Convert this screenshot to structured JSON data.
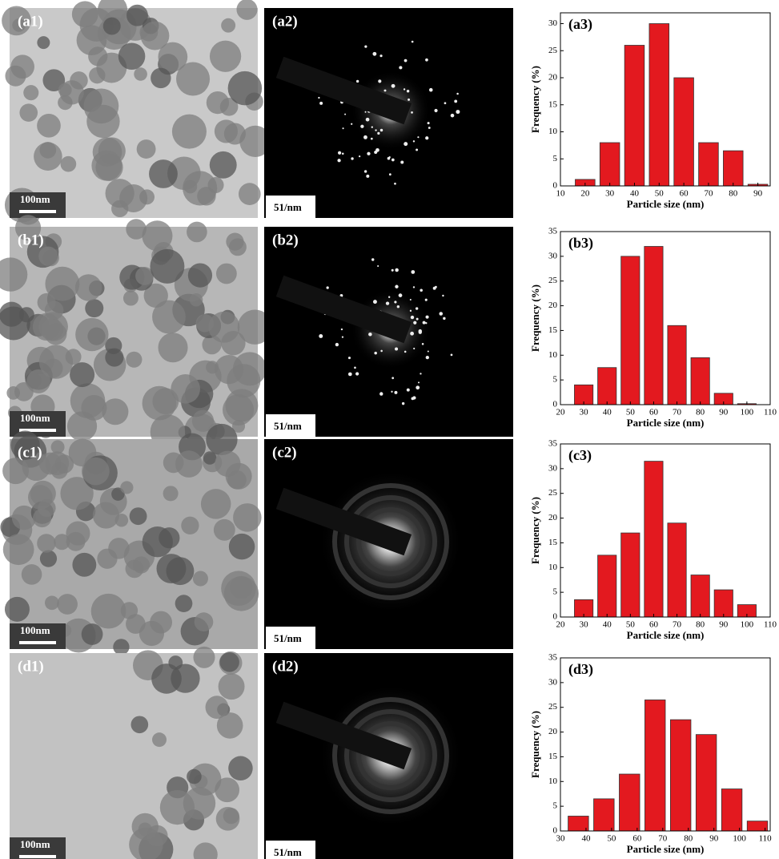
{
  "panels": [
    {
      "tem_label": "(a1)",
      "tem_scale": "100nm",
      "saed_label": "(a2)",
      "saed_scale": "51/nm"
    },
    {
      "tem_label": "(b1)",
      "tem_scale": "100nm",
      "saed_label": "(b2)",
      "saed_scale": "51/nm"
    },
    {
      "tem_label": "(c1)",
      "tem_scale": "100nm",
      "saed_label": "(c2)",
      "saed_scale": "51/nm"
    },
    {
      "tem_label": "(d1)",
      "tem_scale": "100nm",
      "saed_label": "(d2)",
      "saed_scale": "51/nm"
    }
  ],
  "chart_data": [
    {
      "type": "bar",
      "title": "(a3)",
      "x_label": "Particle size (nm)",
      "y_label": "Frequency (%)",
      "color": "#e3191f",
      "x": [
        20,
        30,
        40,
        50,
        60,
        70,
        80,
        90
      ],
      "values": [
        1.2,
        8,
        26,
        30,
        20,
        8,
        6.5,
        0.3
      ],
      "xlim": [
        10,
        95
      ],
      "xticks": [
        10,
        20,
        30,
        40,
        50,
        60,
        70,
        80,
        90
      ],
      "ylim": [
        0,
        32
      ],
      "yticks": [
        0,
        5,
        10,
        15,
        20,
        25,
        30
      ]
    },
    {
      "type": "bar",
      "title": "(b3)",
      "x_label": "Particle size (nm)",
      "y_label": "Frequency (%)",
      "color": "#e3191f",
      "x": [
        30,
        40,
        50,
        60,
        70,
        80,
        90,
        100
      ],
      "values": [
        4,
        7.5,
        30,
        32,
        16,
        9.5,
        2.3,
        0.2
      ],
      "xlim": [
        20,
        110
      ],
      "xticks": [
        20,
        30,
        40,
        50,
        60,
        70,
        80,
        90,
        100,
        110
      ],
      "ylim": [
        0,
        35
      ],
      "yticks": [
        0,
        5,
        10,
        15,
        20,
        25,
        30,
        35
      ]
    },
    {
      "type": "bar",
      "title": "(c3)",
      "x_label": "Particle size (nm)",
      "y_label": "Frequency (%)",
      "color": "#e3191f",
      "x": [
        30,
        40,
        50,
        60,
        70,
        80,
        90,
        100
      ],
      "values": [
        3.5,
        12.5,
        17,
        31.5,
        19,
        8.5,
        5.5,
        2.5
      ],
      "xlim": [
        20,
        110
      ],
      "xticks": [
        20,
        30,
        40,
        50,
        60,
        70,
        80,
        90,
        100,
        110
      ],
      "ylim": [
        0,
        35
      ],
      "yticks": [
        0,
        5,
        10,
        15,
        20,
        25,
        30,
        35
      ]
    },
    {
      "type": "bar",
      "title": "(d3)",
      "x_label": "Particle size (nm)",
      "y_label": "Frequency (%)",
      "color": "#e3191f",
      "x": [
        37,
        47,
        57,
        67,
        77,
        87,
        97,
        107
      ],
      "values": [
        3,
        6.5,
        11.5,
        26.5,
        22.5,
        19.5,
        8.5,
        2
      ],
      "xlim": [
        30,
        112
      ],
      "xticks": [
        30,
        40,
        50,
        60,
        70,
        80,
        90,
        100,
        110
      ],
      "ylim": [
        0,
        35
      ],
      "yticks": [
        0,
        5,
        10,
        15,
        20,
        25,
        30,
        35
      ]
    }
  ]
}
